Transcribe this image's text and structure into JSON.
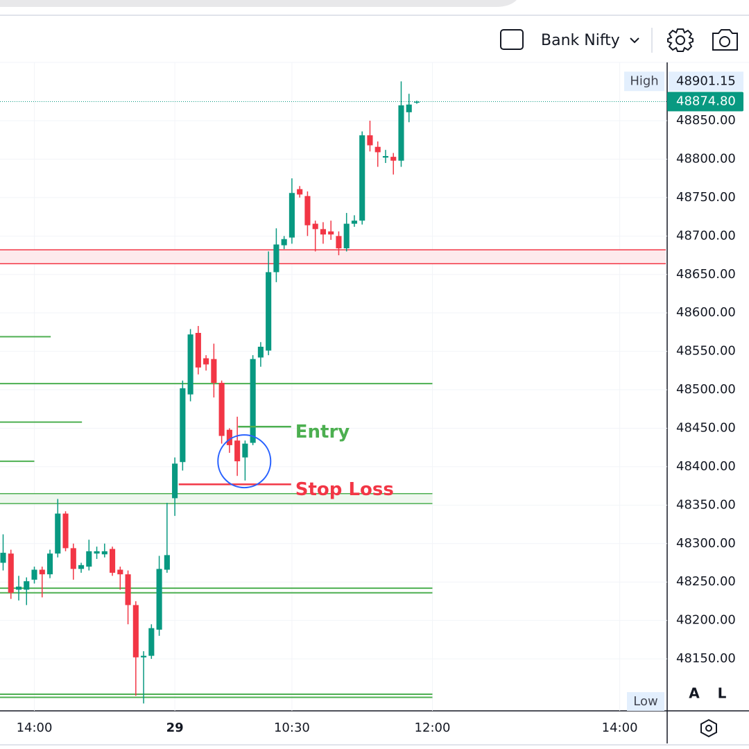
{
  "toolbar": {
    "symbol": "Bank Nifty"
  },
  "scale_buttons": [
    "A",
    "L"
  ],
  "chart_data": {
    "type": "candlestick",
    "open": [
      48275,
      48287,
      48240,
      48240,
      48253,
      48266,
      48260,
      48287,
      48339,
      48294,
      48267,
      48270,
      48287,
      48286,
      48293,
      48266,
      48260,
      48220,
      48152,
      48154,
      48188,
      48266,
      48359,
      48406,
      48494,
      48574,
      48541,
      48540,
      48509,
      48448,
      48434,
      48412,
      48431,
      48542,
      48551,
      48653,
      48688,
      48698,
      48761,
      48752,
      48716,
      48709,
      48706,
      48700,
      48684,
      48716,
      48720,
      48831,
      48816,
      48802,
      48803,
      48798,
      48861,
      48874
    ],
    "high": [
      48312,
      48292,
      48258,
      48256,
      48270,
      48270,
      48292,
      48358,
      48342,
      48300,
      48275,
      48305,
      48296,
      48300,
      48296,
      48270,
      48265,
      48225,
      48160,
      48195,
      48284,
      48353,
      48412,
      48512,
      48579,
      48583,
      48545,
      48560,
      48512,
      48450,
      48465,
      48434,
      48545,
      48562,
      48680,
      48710,
      48700,
      48775,
      48765,
      48758,
      48720,
      48718,
      48720,
      48706,
      48730,
      48727,
      48836,
      48850,
      48823,
      48812,
      48808,
      48901.15,
      48885,
      48876
    ],
    "low": [
      48265,
      48228,
      48226,
      48220,
      48248,
      48230,
      48255,
      48282,
      48290,
      48253,
      48262,
      48265,
      48280,
      48282,
      48258,
      48240,
      48195,
      48102,
      48092,
      48150,
      48180,
      48262,
      48336,
      48395,
      48485,
      48520,
      48525,
      48490,
      48430,
      48418,
      48388,
      48382,
      48428,
      48530,
      48545,
      48640,
      48683,
      48690,
      48750,
      48700,
      48680,
      48690,
      48695,
      48675,
      48680,
      48712,
      48715,
      48810,
      48790,
      48795,
      48780,
      48790,
      48848,
      48872
    ],
    "close": [
      48288,
      48236,
      48244,
      48251,
      48266,
      48260,
      48287,
      48339,
      48294,
      48267,
      48272,
      48290,
      48290,
      48290,
      48262,
      48260,
      48220,
      48152,
      48154,
      48190,
      48267,
      48285,
      48404,
      48502,
      48572,
      48529,
      48533,
      48509,
      48440,
      48428,
      48407,
      48430,
      48540,
      48556,
      48653,
      48689,
      48696,
      48756,
      48754,
      48714,
      48709,
      48702,
      48702,
      48684,
      48716,
      48720,
      48831,
      48818,
      48809,
      48804,
      48798,
      48870,
      48871,
      48874.8
    ],
    "up_color": "#089981",
    "down_color": "#f23645",
    "xlim": [
      -0.4,
      84.9
    ],
    "xticks": [
      {
        "value": 4,
        "label": "14:00"
      },
      {
        "value": 22,
        "label": "29",
        "bold": true
      },
      {
        "value": 37,
        "label": "10:30"
      },
      {
        "value": 55,
        "label": "12:00"
      },
      {
        "value": 79,
        "label": "14:00"
      }
    ],
    "ylim": [
      48082.4,
      48925.8
    ],
    "yticks": [
      {
        "value": 48150,
        "label": "48150.00"
      },
      {
        "value": 48200,
        "label": "48200.00"
      },
      {
        "value": 48250,
        "label": "48250.00"
      },
      {
        "value": 48300,
        "label": "48300.00"
      },
      {
        "value": 48350,
        "label": "48350.00"
      },
      {
        "value": 48400,
        "label": "48400.00"
      },
      {
        "value": 48450,
        "label": "48450.00"
      },
      {
        "value": 48500,
        "label": "48500.00"
      },
      {
        "value": 48550,
        "label": "48550.00"
      },
      {
        "value": 48600,
        "label": "48600.00"
      },
      {
        "value": 48650,
        "label": "48650.00"
      },
      {
        "value": 48700,
        "label": "48700.00"
      },
      {
        "value": 48750,
        "label": "48750.00"
      },
      {
        "value": 48800,
        "label": "48800.00"
      },
      {
        "value": 48850,
        "label": "48850.00"
      }
    ],
    "grid": true,
    "last_price": {
      "value": 48874.8,
      "label": "48874.80",
      "color": "#089981"
    },
    "high_marker": {
      "label": "High",
      "value": 48901.15,
      "value_label": "48901.15"
    },
    "low_marker": {
      "label": "Low"
    },
    "zones": [
      {
        "from_value": 48664,
        "to_value": 48682,
        "to": 84.9,
        "color": "#f23645",
        "fill": "#fdeaec"
      },
      {
        "from_value": 48352,
        "to_value": 48365,
        "to": 55,
        "color": "#4caf50",
        "fill": "#eef7ee"
      }
    ],
    "levels": [
      {
        "value": 48569,
        "to": 6.1,
        "color": "#4caf50"
      },
      {
        "value": 48508,
        "to": 55,
        "color": "#4caf50"
      },
      {
        "value": 48458,
        "to": 10.1,
        "color": "#4caf50"
      },
      {
        "value": 48407,
        "to": 4.0,
        "color": "#4caf50"
      },
      {
        "value": 48242,
        "to": 55,
        "color": "#4caf50"
      },
      {
        "value": 48236,
        "to": 55,
        "color": "#4caf50"
      },
      {
        "value": 48104,
        "to": 55,
        "color": "#4caf50"
      },
      {
        "value": 48100,
        "to": 55,
        "color": "#4caf50"
      }
    ],
    "annotations": [
      {
        "text": "Entry",
        "value": 48452,
        "from": 30.1,
        "to": 36.9,
        "color": "#4caf50"
      },
      {
        "text": "Stop Loss",
        "value": 48377,
        "from": 22.5,
        "to": 36.9,
        "color": "#f23645"
      }
    ],
    "highlight": {
      "x": 30.9,
      "value": 48407,
      "color": "#2962ff"
    }
  }
}
